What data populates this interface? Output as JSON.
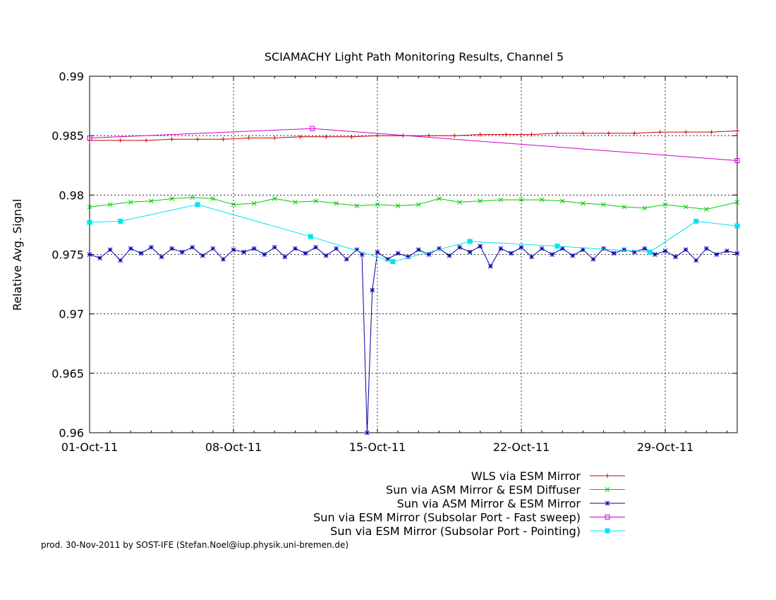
{
  "chart_data": {
    "type": "line",
    "title": "SCIAMACHY Light Path Monitoring Results, Channel 5",
    "xlabel": "",
    "ylabel": "Relative Avg. Signal",
    "x_unit": "date",
    "xlim": [
      "2011-10-01",
      "2011-11-01 12:00"
    ],
    "ylim": [
      0.96,
      0.99
    ],
    "x_ticks": [
      "01-Oct-11",
      "08-Oct-11",
      "15-Oct-11",
      "22-Oct-11",
      "29-Oct-11"
    ],
    "y_ticks": [
      "0.96",
      "0.965",
      "0.97",
      "0.975",
      "0.98",
      "0.985",
      "0.99"
    ],
    "grid": true,
    "legend_position": "bottom-right",
    "series": [
      {
        "name": "WLS via ESM Mirror",
        "color": "#cc0000",
        "marker": "plus",
        "x": [
          "2011-10-01",
          "2011-10-02 12:00",
          "2011-10-03 18:00",
          "2011-10-05",
          "2011-10-06 06:00",
          "2011-10-07 12:00",
          "2011-10-08 18:00",
          "2011-10-10",
          "2011-10-11 06:00",
          "2011-10-12 12:00",
          "2011-10-13 18:00",
          "2011-10-15",
          "2011-10-16 06:00",
          "2011-10-17 12:00",
          "2011-10-18 18:00",
          "2011-10-20",
          "2011-10-21 06:00",
          "2011-10-22 12:00",
          "2011-10-23 18:00",
          "2011-10-25",
          "2011-10-26 06:00",
          "2011-10-27 12:00",
          "2011-10-28 18:00",
          "2011-10-30",
          "2011-10-31 06:00",
          "2011-11-01 12:00"
        ],
        "y": [
          0.9846,
          0.9846,
          0.9846,
          0.9847,
          0.9847,
          0.9847,
          0.9848,
          0.9848,
          0.9849,
          0.9849,
          0.9849,
          0.985,
          0.985,
          0.985,
          0.985,
          0.9851,
          0.9851,
          0.9851,
          0.9852,
          0.9852,
          0.9852,
          0.9852,
          0.9853,
          0.9853,
          0.9853,
          0.9854
        ]
      },
      {
        "name": "Sun via ASM Mirror & ESM Diffuser",
        "color": "#00cc00",
        "marker": "cross",
        "x": [
          "2011-10-01",
          "2011-10-02",
          "2011-10-03",
          "2011-10-04",
          "2011-10-05",
          "2011-10-06",
          "2011-10-07",
          "2011-10-08",
          "2011-10-09",
          "2011-10-10",
          "2011-10-11",
          "2011-10-12",
          "2011-10-13",
          "2011-10-14",
          "2011-10-15",
          "2011-10-16",
          "2011-10-17",
          "2011-10-18",
          "2011-10-19",
          "2011-10-20",
          "2011-10-21",
          "2011-10-22",
          "2011-10-23",
          "2011-10-24",
          "2011-10-25",
          "2011-10-26",
          "2011-10-27",
          "2011-10-28",
          "2011-10-29",
          "2011-10-30",
          "2011-10-31",
          "2011-11-01 12:00"
        ],
        "y": [
          0.979,
          0.9792,
          0.9794,
          0.9795,
          0.9797,
          0.9798,
          0.9797,
          0.9792,
          0.9793,
          0.9797,
          0.9794,
          0.9795,
          0.9793,
          0.9791,
          0.9792,
          0.9791,
          0.9792,
          0.9797,
          0.9794,
          0.9795,
          0.9796,
          0.9796,
          0.9796,
          0.9795,
          0.9793,
          0.9792,
          0.979,
          0.9789,
          0.9792,
          0.979,
          0.9788,
          0.9794
        ]
      },
      {
        "name": "Sun via ASM Mirror & ESM Mirror",
        "color": "#0000aa",
        "marker": "star",
        "x": [
          "2011-10-01",
          "2011-10-01 12:00",
          "2011-10-02",
          "2011-10-02 12:00",
          "2011-10-03",
          "2011-10-03 12:00",
          "2011-10-04",
          "2011-10-04 12:00",
          "2011-10-05",
          "2011-10-05 12:00",
          "2011-10-06",
          "2011-10-06 12:00",
          "2011-10-07",
          "2011-10-07 12:00",
          "2011-10-08",
          "2011-10-08 12:00",
          "2011-10-09",
          "2011-10-09 12:00",
          "2011-10-10",
          "2011-10-10 12:00",
          "2011-10-11",
          "2011-10-11 12:00",
          "2011-10-12",
          "2011-10-12 12:00",
          "2011-10-13",
          "2011-10-13 12:00",
          "2011-10-14",
          "2011-10-14 06:00",
          "2011-10-14 12:00",
          "2011-10-14 18:00",
          "2011-10-15",
          "2011-10-15 12:00",
          "2011-10-16",
          "2011-10-16 12:00",
          "2011-10-17",
          "2011-10-17 12:00",
          "2011-10-18",
          "2011-10-18 12:00",
          "2011-10-19",
          "2011-10-19 12:00",
          "2011-10-20",
          "2011-10-20 12:00",
          "2011-10-21",
          "2011-10-21 12:00",
          "2011-10-22",
          "2011-10-22 12:00",
          "2011-10-23",
          "2011-10-23 12:00",
          "2011-10-24",
          "2011-10-24 12:00",
          "2011-10-25",
          "2011-10-25 12:00",
          "2011-10-26",
          "2011-10-26 12:00",
          "2011-10-27",
          "2011-10-27 12:00",
          "2011-10-28",
          "2011-10-28 12:00",
          "2011-10-29",
          "2011-10-29 12:00",
          "2011-10-30",
          "2011-10-30 12:00",
          "2011-10-31",
          "2011-10-31 12:00",
          "2011-11-01",
          "2011-11-01 12:00"
        ],
        "y": [
          0.975,
          0.9747,
          0.9754,
          0.9745,
          0.9755,
          0.9751,
          0.9756,
          0.9748,
          0.9755,
          0.9752,
          0.9756,
          0.9749,
          0.9755,
          0.9746,
          0.9754,
          0.9752,
          0.9755,
          0.975,
          0.9756,
          0.9748,
          0.9755,
          0.9751,
          0.9756,
          0.9749,
          0.9755,
          0.9746,
          0.9754,
          0.975,
          0.96,
          0.972,
          0.9752,
          0.9746,
          0.9751,
          0.9748,
          0.9754,
          0.975,
          0.9755,
          0.9749,
          0.9756,
          0.9752,
          0.9757,
          0.974,
          0.9755,
          0.9751,
          0.9756,
          0.9748,
          0.9755,
          0.975,
          0.9755,
          0.9749,
          0.9754,
          0.9746,
          0.9755,
          0.9751,
          0.9754,
          0.9752,
          0.9755,
          0.975,
          0.9753,
          0.9748,
          0.9754,
          0.9745,
          0.9755,
          0.975,
          0.9753,
          0.9751
        ]
      },
      {
        "name": "Sun via ESM Mirror (Subsolar Port - Fast sweep)",
        "color": "#cc00cc",
        "marker": "square-open",
        "x": [
          "2011-10-01",
          "2011-10-11 20:00",
          "2011-11-01 12:00"
        ],
        "y": [
          0.9848,
          0.9856,
          0.9829
        ]
      },
      {
        "name": "Sun via ESM Mirror (Subsolar Port - Pointing)",
        "color": "#00e5ee",
        "marker": "square-filled",
        "x": [
          "2011-10-01",
          "2011-10-02 12:00",
          "2011-10-06 06:00",
          "2011-10-11 18:00",
          "2011-10-15 18:00",
          "2011-10-19 12:00",
          "2011-10-23 18:00",
          "2011-10-28 06:00",
          "2011-10-30 12:00",
          "2011-11-01 12:00"
        ],
        "y": [
          0.9777,
          0.9778,
          0.9792,
          0.9765,
          0.9744,
          0.9761,
          0.9757,
          0.9752,
          0.9778,
          0.9774
        ]
      }
    ]
  },
  "footer": {
    "text": "prod. 30-Nov-2011 by SOST-IFE (Stefan.Noel@iup.physik.uni-bremen.de)"
  }
}
